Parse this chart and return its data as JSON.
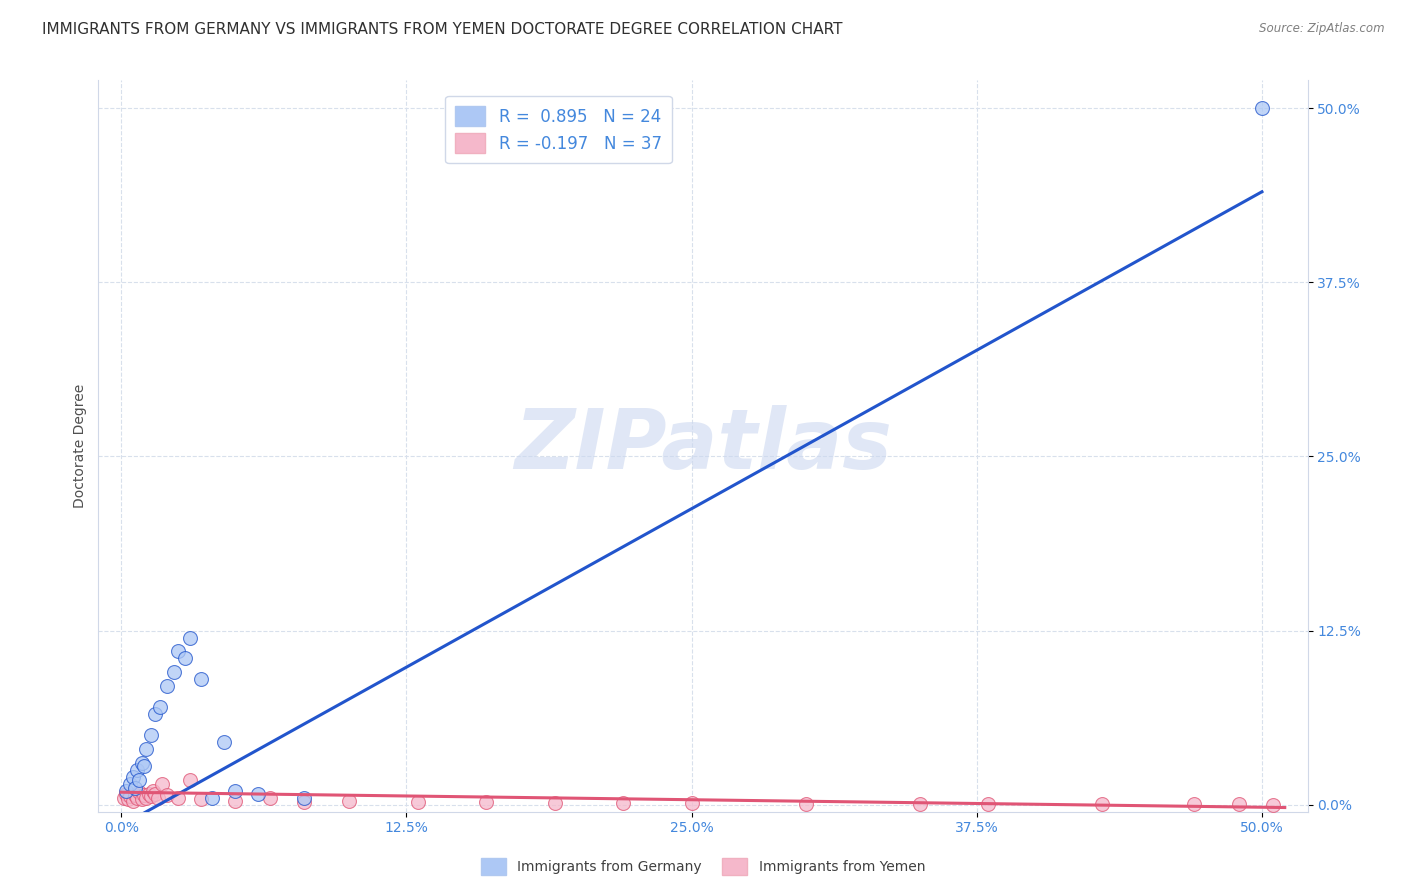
{
  "title": "IMMIGRANTS FROM GERMANY VS IMMIGRANTS FROM YEMEN DOCTORATE DEGREE CORRELATION CHART",
  "source": "Source: ZipAtlas.com",
  "ylabel": "Doctorate Degree",
  "ytick_values": [
    0.0,
    12.5,
    25.0,
    37.5,
    50.0
  ],
  "xtick_values": [
    0.0,
    12.5,
    25.0,
    37.5,
    50.0
  ],
  "xlim": [
    -1.0,
    52.0
  ],
  "ylim": [
    -0.5,
    52.0
  ],
  "watermark": "ZIPatlas",
  "legend_r_germany": "R =  0.895",
  "legend_n_germany": "N = 24",
  "legend_r_yemen": "R = -0.197",
  "legend_n_yemen": "N = 37",
  "germany_color": "#adc8f5",
  "germany_line_color": "#2255cc",
  "yemen_color": "#f5b8cb",
  "yemen_line_color": "#e05575",
  "germany_scatter_x": [
    0.2,
    0.4,
    0.5,
    0.6,
    0.7,
    0.8,
    0.9,
    1.0,
    1.1,
    1.3,
    1.5,
    1.7,
    2.0,
    2.3,
    2.5,
    2.8,
    3.0,
    3.5,
    4.0,
    4.5,
    5.0,
    6.0,
    8.0,
    50.0
  ],
  "germany_scatter_y": [
    1.0,
    1.5,
    2.0,
    1.2,
    2.5,
    1.8,
    3.0,
    2.8,
    4.0,
    5.0,
    6.5,
    7.0,
    8.5,
    9.5,
    11.0,
    10.5,
    12.0,
    9.0,
    0.5,
    4.5,
    1.0,
    0.8,
    0.5,
    50.0
  ],
  "yemen_scatter_x": [
    0.1,
    0.2,
    0.3,
    0.4,
    0.5,
    0.6,
    0.7,
    0.8,
    0.9,
    1.0,
    1.1,
    1.2,
    1.3,
    1.4,
    1.5,
    1.6,
    1.8,
    2.0,
    2.5,
    3.0,
    3.5,
    5.0,
    6.5,
    8.0,
    10.0,
    13.0,
    16.0,
    19.0,
    22.0,
    25.0,
    30.0,
    35.0,
    38.0,
    43.0,
    47.0,
    49.0,
    50.5
  ],
  "yemen_scatter_y": [
    0.5,
    0.8,
    0.4,
    0.6,
    0.3,
    0.7,
    0.5,
    0.9,
    0.4,
    0.7,
    0.5,
    0.8,
    0.6,
    1.0,
    0.8,
    0.5,
    1.5,
    0.7,
    0.5,
    1.8,
    0.4,
    0.3,
    0.5,
    0.2,
    0.3,
    0.2,
    0.2,
    0.15,
    0.1,
    0.1,
    0.08,
    0.06,
    0.05,
    0.04,
    0.03,
    0.02,
    0.01
  ],
  "germany_reg_x0": 0.0,
  "germany_reg_y0": -1.5,
  "germany_reg_x1": 50.0,
  "germany_reg_y1": 44.0,
  "yemen_reg_x0": 0.0,
  "yemen_reg_y0": 0.9,
  "yemen_reg_x1": 51.0,
  "yemen_reg_y1": -0.2,
  "background_color": "#ffffff",
  "grid_color": "#d8e0ec",
  "title_fontsize": 11,
  "axis_label_fontsize": 10,
  "tick_fontsize": 10,
  "watermark_color": "#ccd8f0",
  "watermark_fontsize": 60,
  "scatter_size": 100
}
